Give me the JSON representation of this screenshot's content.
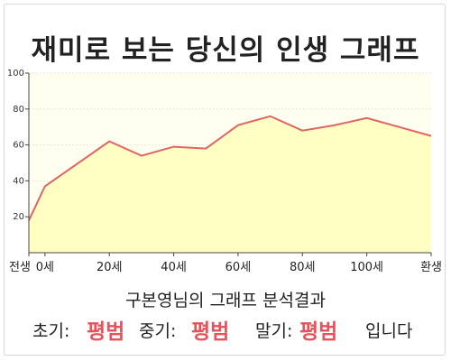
{
  "title": "재미로 보는 당신의 인생 그래프",
  "chart_data": {
    "type": "area",
    "x": [
      -5,
      0,
      20,
      30,
      40,
      50,
      60,
      70,
      80,
      90,
      100,
      110,
      120
    ],
    "values": [
      18,
      37,
      62,
      54,
      59,
      58,
      71,
      76,
      68,
      71,
      75,
      70,
      65
    ],
    "xticks": [
      {
        "x": -5,
        "label": "전생"
      },
      {
        "x": 0,
        "label": "0세"
      },
      {
        "x": 20,
        "label": "20세"
      },
      {
        "x": 40,
        "label": "40세"
      },
      {
        "x": 60,
        "label": "60세"
      },
      {
        "x": 80,
        "label": "80세"
      },
      {
        "x": 100,
        "label": "100세"
      },
      {
        "x": 120,
        "label": "환생"
      }
    ],
    "yticks": [
      20,
      40,
      60,
      80,
      100
    ],
    "ylim": [
      0,
      100
    ],
    "grid": true,
    "colors": {
      "line": "#e06464",
      "fill": "#ffffc4",
      "plot_bg": "#fffff0",
      "grid": "#e6e6d6"
    }
  },
  "subtitle": "구본영님의 그래프 분석결과",
  "result": {
    "early_label": "초기:",
    "early_grade": "평범",
    "mid_label": "중기:",
    "mid_grade": "평범",
    "late_label": "말기:",
    "late_grade": "평범",
    "suffix": "입니다"
  }
}
